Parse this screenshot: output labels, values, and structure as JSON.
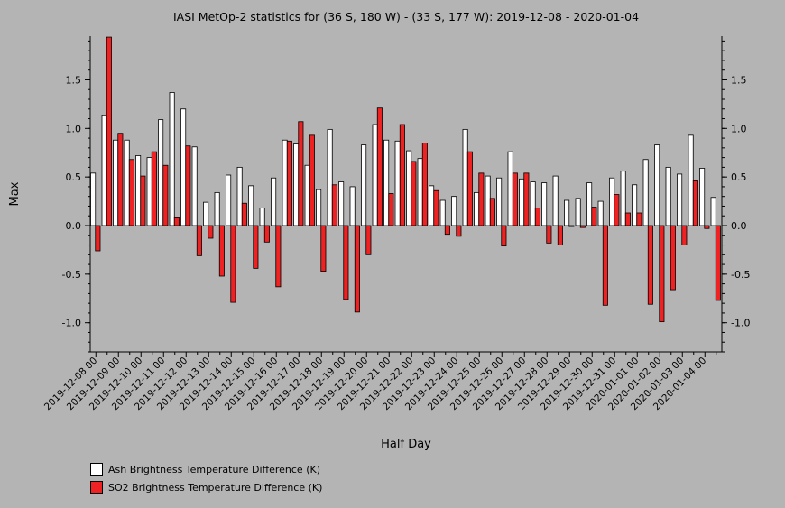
{
  "chart_data": {
    "type": "bar",
    "title": "IASI MetOp-2 statistics for (36 S, 180 W) - (33 S, 177 W): 2019-12-08 - 2020-01-04",
    "xlabel": "Half Day",
    "ylabel": "Max",
    "ylim": [
      -1.3,
      1.95
    ],
    "yticks": [
      "-1.0",
      "-0.5",
      "0.0",
      "0.5",
      "1.0",
      "1.5"
    ],
    "grid": false,
    "legend_position": "bottom-left",
    "x_tick_labels": [
      "2019-12-08 00",
      "2019-12-09 00",
      "2019-12-10 00",
      "2019-12-11 00",
      "2019-12-12 00",
      "2019-12-13 00",
      "2019-12-14 00",
      "2019-12-15 00",
      "2019-12-16 00",
      "2019-12-17 00",
      "2019-12-18 00",
      "2019-12-19 00",
      "2019-12-20 00",
      "2019-12-21 00",
      "2019-12-22 00",
      "2019-12-23 00",
      "2019-12-24 00",
      "2019-12-25 00",
      "2019-12-26 00",
      "2019-12-27 00",
      "2019-12-28 00",
      "2019-12-29 00",
      "2019-12-30 00",
      "2019-12-31 00",
      "2020-01-01 00",
      "2020-01-02 00",
      "2020-01-03 00",
      "2020-01-04 00"
    ],
    "series": [
      {
        "name": "Ash Brightness Temperature Difference (K)",
        "color": "#ffffff",
        "values": [
          0.54,
          1.13,
          0.88,
          0.88,
          0.72,
          0.7,
          1.09,
          1.37,
          1.2,
          0.81,
          0.24,
          0.34,
          0.52,
          0.6,
          0.41,
          0.18,
          0.49,
          0.88,
          0.84,
          0.62,
          0.37,
          0.99,
          0.45,
          0.4,
          0.83,
          1.04,
          0.88,
          0.87,
          0.77,
          0.69,
          0.41,
          0.26,
          0.3,
          0.99,
          0.34,
          0.51,
          0.49,
          0.76,
          0.48,
          0.45,
          0.44,
          0.51,
          0.26,
          0.28,
          0.44,
          0.25,
          0.49,
          0.56,
          0.42,
          0.68,
          0.83,
          0.6,
          0.53,
          0.93,
          0.59,
          0.29
        ]
      },
      {
        "name": "SO2 Brightness Temperature Difference (K)",
        "color": "#ee2222",
        "values": [
          -0.26,
          1.94,
          0.95,
          0.68,
          0.51,
          0.76,
          0.62,
          0.08,
          0.82,
          -0.31,
          -0.13,
          -0.52,
          -0.79,
          0.23,
          -0.44,
          -0.17,
          -0.63,
          0.87,
          1.07,
          0.93,
          -0.47,
          0.42,
          -0.76,
          -0.89,
          -0.3,
          1.21,
          0.33,
          1.04,
          0.66,
          0.85,
          0.36,
          -0.09,
          -0.11,
          0.76,
          0.54,
          0.28,
          -0.21,
          0.54,
          0.54,
          0.18,
          -0.18,
          -0.2,
          -0.01,
          -0.02,
          0.19,
          -0.82,
          0.32,
          0.13,
          0.13,
          -0.81,
          -0.99,
          -0.66,
          -0.2,
          0.46,
          -0.03,
          -0.77
        ]
      }
    ]
  }
}
